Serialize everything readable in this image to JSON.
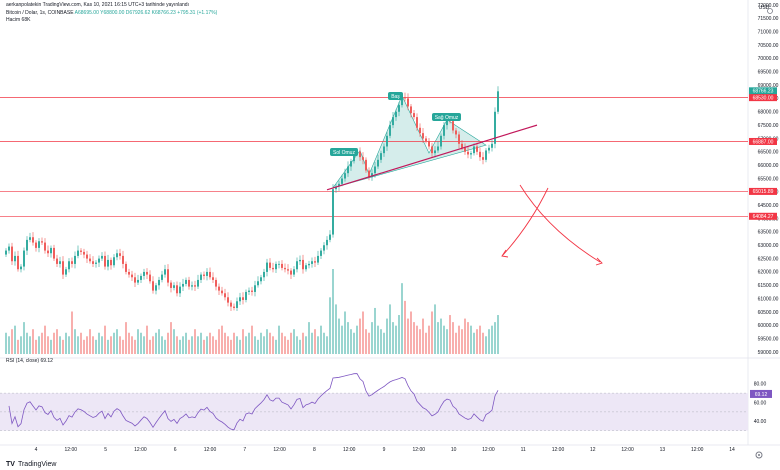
{
  "header": {
    "publish_line": "aerkanpolatekin TradingView.com, Kas 10, 2021 16:15 UTC+3 tarihinde yayınlandı",
    "symbol_line": {
      "symbol": "Bitcoin / Dolar, 1s, COINBASE",
      "open": "A68695.00",
      "high": "Y68800.00",
      "low": "D67926.62",
      "close": "K68766.23",
      "change": "+795.31 (+1.17%)"
    },
    "volume_line": "Hacim  68K",
    "rsi_line": "RSI (14, close)  69.12"
  },
  "price_axis": {
    "top_label": "USD",
    "ticks": [
      "72000.00",
      "71500.00",
      "71000.00",
      "70500.00",
      "70000.00",
      "69500.00",
      "69000.00",
      "68500.00",
      "68000.00",
      "67500.00",
      "67000.00",
      "66500.00",
      "66000.00",
      "65500.00",
      "65000.00",
      "64500.00",
      "64000.00",
      "63500.00",
      "63000.00",
      "62500.00",
      "62000.00",
      "61500.00",
      "61000.00",
      "60500.00",
      "60000.00",
      "59500.00",
      "59000.00"
    ]
  },
  "rsi_axis": {
    "ticks": [
      "80.00",
      "60.00",
      "40.00"
    ]
  },
  "time_axis": {
    "ticks": [
      "4",
      "12:00",
      "5",
      "12:00",
      "6",
      "12:00",
      "7",
      "12:00",
      "8",
      "12:00",
      "9",
      "12:00",
      "10",
      "12:00",
      "11",
      "12:00",
      "12",
      "12:00",
      "13",
      "12:00",
      "14"
    ]
  },
  "price_pins": [
    {
      "label": "68766.23",
      "sub": "44:09",
      "color": "#26a69a"
    },
    {
      "label": "68530.00",
      "color": "#f23645"
    },
    {
      "label": "66887.00",
      "color": "#f23645"
    },
    {
      "label": "65015.89",
      "color": "#f23645"
    },
    {
      "label": "64084.27",
      "color": "#f23645"
    }
  ],
  "annotations": {
    "head": "Baş",
    "left_shoulder": "Sol Omuz",
    "right_shoulder": "Sağ Omuz"
  },
  "colors": {
    "up": "#26a69a",
    "down": "#ef5350",
    "level": "#f23645",
    "neckline": "#c2185b",
    "pattern_fill": "#b2dfdb",
    "rsi_line": "#7e57c2",
    "rsi_band": "#ede7f6"
  },
  "icons": {
    "settings": "gear-icon",
    "brand": "tradingview-logo"
  },
  "footer": {
    "brand": "TradingView"
  },
  "chart_data": {
    "type": "candlestick",
    "symbol": "Bitcoin / Dolar, 1s, COINBASE",
    "price_levels": [
      68530.0,
      66887.0,
      65015.89,
      64084.27
    ],
    "last_price": 68766.23,
    "ylim": [
      59000,
      72000
    ],
    "rsi_ylim": [
      20,
      100
    ],
    "rsi_last": 69.12,
    "neckline": {
      "start_close": 65150,
      "end_close": 67500
    },
    "pattern": {
      "left_shoulder": 66550,
      "head": 68600,
      "right_shoulder": 67700
    },
    "closes": [
      62800,
      62950,
      62400,
      62600,
      62100,
      62200,
      62800,
      63200,
      63300,
      63100,
      62900,
      63150,
      63100,
      62800,
      62700,
      62900,
      62500,
      62300,
      62400,
      61900,
      62100,
      62400,
      62300,
      62600,
      62800,
      62750,
      62650,
      62500,
      62400,
      62300,
      62350,
      62500,
      62600,
      62200,
      62450,
      62250,
      62550,
      62700,
      62600,
      62300,
      62000,
      61900,
      61800,
      61600,
      61700,
      61850,
      62000,
      61900,
      61650,
      61300,
      61500,
      61700,
      61900,
      62100,
      61600,
      61400,
      61500,
      61200,
      61450,
      61550,
      61700,
      61450,
      61500,
      61450,
      61700,
      61900,
      61850,
      62000,
      61800,
      61700,
      61450,
      61300,
      61200,
      61050,
      60850,
      60700,
      60650,
      60900,
      61050,
      60950,
      61250,
      61300,
      61250,
      61500,
      61650,
      61800,
      62000,
      62350,
      62150,
      62100,
      62300,
      62300,
      62150,
      62100,
      62050,
      61900,
      62100,
      62400,
      62450,
      62100,
      62250,
      62300,
      62400,
      62350,
      62600,
      62800,
      63000,
      63200,
      63400,
      65100,
      65200,
      65300,
      65500,
      65700,
      65950,
      66150,
      66450,
      66500,
      66300,
      66200,
      65800,
      65550,
      65700,
      65950,
      66200,
      66450,
      66700,
      67100,
      67500,
      67800,
      68000,
      68250,
      68550,
      68500,
      68200,
      67950,
      67800,
      67400,
      67200,
      67000,
      66900,
      66700,
      66450,
      66550,
      66700,
      67100,
      67500,
      67700,
      67650,
      67300,
      67150,
      66800,
      66650,
      66500,
      66400,
      66450,
      66700,
      66500,
      66300,
      66200,
      66550,
      66650,
      66800,
      68000,
      68766
    ],
    "volumes": [
      6,
      5,
      7,
      8,
      4,
      5,
      9,
      6,
      5,
      7,
      4,
      5,
      6,
      8,
      5,
      4,
      6,
      7,
      5,
      4,
      6,
      5,
      12,
      7,
      5,
      6,
      4,
      5,
      7,
      5,
      4,
      6,
      5,
      8,
      4,
      5,
      6,
      7,
      5,
      4,
      9,
      6,
      5,
      4,
      7,
      6,
      5,
      8,
      4,
      5,
      6,
      7,
      5,
      4,
      6,
      9,
      7,
      5,
      4,
      5,
      6,
      4,
      5,
      7,
      5,
      6,
      4,
      5,
      6,
      5,
      4,
      7,
      8,
      6,
      5,
      4,
      6,
      5,
      4,
      7,
      5,
      6,
      8,
      5,
      4,
      6,
      5,
      7,
      6,
      5,
      4,
      8,
      6,
      5,
      4,
      6,
      7,
      5,
      4,
      6,
      5,
      9,
      6,
      7,
      5,
      8,
      6,
      5,
      16,
      24,
      14,
      10,
      8,
      12,
      9,
      7,
      6,
      8,
      10,
      12,
      7,
      6,
      9,
      13,
      8,
      7,
      6,
      10,
      14,
      9,
      8,
      11,
      20,
      15,
      10,
      12,
      9,
      8,
      7,
      10,
      6,
      8,
      12,
      14,
      9,
      10,
      8,
      7,
      11,
      9,
      6,
      8,
      7,
      10,
      9,
      8,
      6,
      7,
      8,
      6,
      5,
      7,
      8,
      9,
      11
    ]
  }
}
